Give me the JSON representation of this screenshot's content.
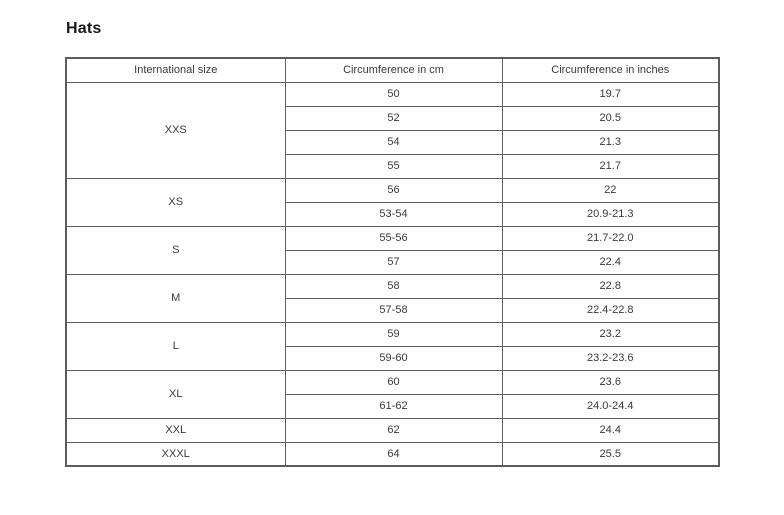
{
  "page": {
    "title": "Hats"
  },
  "table": {
    "headers": [
      "International size",
      "Circumference in cm",
      "Circumference in inches"
    ],
    "groups": [
      {
        "size": "XXS",
        "rows": [
          [
            "50",
            "19.7"
          ],
          [
            "52",
            "20.5"
          ],
          [
            "54",
            "21.3"
          ],
          [
            "55",
            "21.7"
          ]
        ]
      },
      {
        "size": "XS",
        "rows": [
          [
            "56",
            "22"
          ],
          [
            "53-54",
            "20.9-21.3"
          ]
        ]
      },
      {
        "size": "S",
        "rows": [
          [
            "55-56",
            "21.7-22.0"
          ],
          [
            "57",
            "22.4"
          ]
        ]
      },
      {
        "size": "M",
        "rows": [
          [
            "58",
            "22.8"
          ],
          [
            "57-58",
            "22.4-22.8"
          ]
        ]
      },
      {
        "size": "L",
        "rows": [
          [
            "59",
            "23.2"
          ],
          [
            "59-60",
            "23.2-23.6"
          ]
        ]
      },
      {
        "size": "XL",
        "rows": [
          [
            "60",
            "23.6"
          ],
          [
            "61-62",
            "24.0-24.4"
          ]
        ]
      },
      {
        "size": "XXL",
        "rows": [
          [
            "62",
            "24.4"
          ]
        ]
      },
      {
        "size": "XXXL",
        "rows": [
          [
            "64",
            "25.5"
          ]
        ]
      }
    ],
    "colors": {
      "border": "#5f5f5f",
      "text": "#3a3a3a",
      "title_text": "#1a1a1a",
      "background": "#ffffff"
    }
  }
}
